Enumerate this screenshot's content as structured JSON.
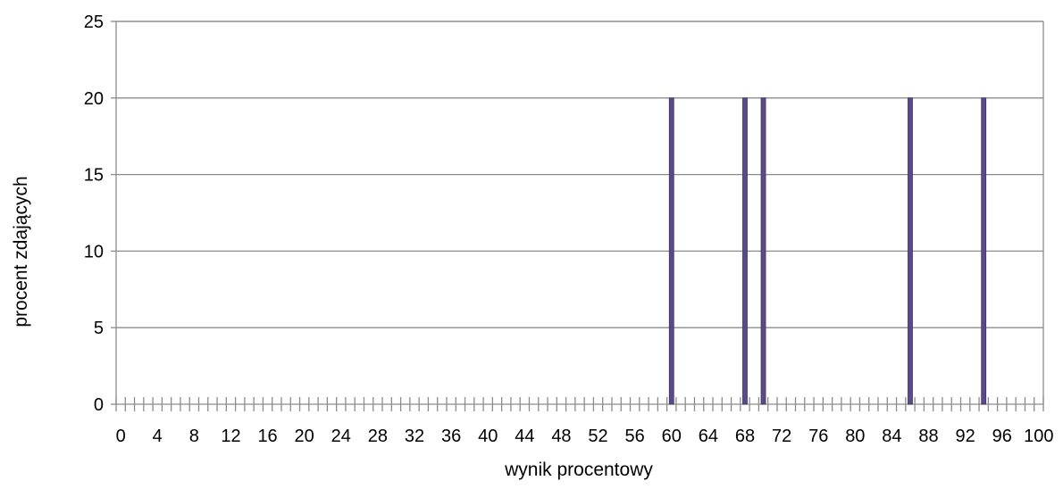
{
  "chart_data": {
    "type": "bar",
    "xlabel": "wynik procentowy",
    "ylabel": "procent zdających",
    "ylim": [
      0,
      25
    ],
    "yticks": [
      "0",
      "5",
      "10",
      "15",
      "20",
      "25"
    ],
    "xlim": [
      0,
      100
    ],
    "xtick_labels": [
      "0",
      "4",
      "8",
      "12",
      "16",
      "20",
      "24",
      "28",
      "32",
      "36",
      "40",
      "44",
      "48",
      "52",
      "56",
      "60",
      "64",
      "68",
      "72",
      "76",
      "80",
      "84",
      "88",
      "92",
      "96",
      "100"
    ],
    "grid": true,
    "bar_color": "#5b4a8a",
    "bars": [
      {
        "x": 60,
        "y": 20
      },
      {
        "x": 68,
        "y": 20
      },
      {
        "x": 70,
        "y": 20
      },
      {
        "x": 86,
        "y": 20
      },
      {
        "x": 94,
        "y": 20
      }
    ]
  }
}
